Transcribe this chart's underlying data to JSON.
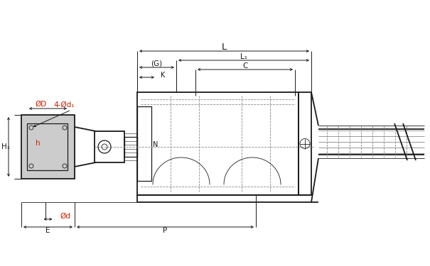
{
  "bg_color": "#ffffff",
  "line_color": "#1a1a1a",
  "dim_color": "#1a1a1a",
  "red": "#cc2200",
  "blue": "#0044cc",
  "gray_fill": "#cccccc",
  "figsize": [
    6.05,
    3.75
  ],
  "dpi": 100,
  "labels": {
    "G": "(G)",
    "L": "L",
    "L1": "L₁",
    "C": "C",
    "K": "K",
    "N": "N",
    "OD": "ØD",
    "Od": "Ød",
    "Od1": "4-Ød₁",
    "h": "h",
    "H1": "H₁",
    "E": "E",
    "P": "P"
  }
}
